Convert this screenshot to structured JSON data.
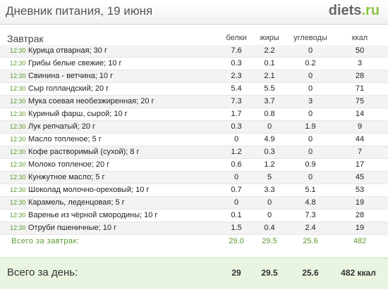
{
  "header": {
    "title": "Дневник питания, 19 июня",
    "logo_main": "diets",
    "logo_suffix": ".ru"
  },
  "table": {
    "meal_title": "Завтрак",
    "columns": [
      "белки",
      "жиры",
      "углеводы",
      "ккал"
    ],
    "rows": [
      {
        "time": "12:30",
        "food": "Курица отварная; 30 г",
        "protein": "7.6",
        "fat": "2.2",
        "carbs": "0",
        "kcal": "50"
      },
      {
        "time": "12:30",
        "food": "Грибы белые свежие; 10 г",
        "protein": "0.3",
        "fat": "0.1",
        "carbs": "0.2",
        "kcal": "3"
      },
      {
        "time": "12:30",
        "food": "Свинина - ветчина; 10 г",
        "protein": "2.3",
        "fat": "2.1",
        "carbs": "0",
        "kcal": "28"
      },
      {
        "time": "12:30",
        "food": "Сыр голландский; 20 г",
        "protein": "5.4",
        "fat": "5.5",
        "carbs": "0",
        "kcal": "71"
      },
      {
        "time": "12:30",
        "food": "Мука соевая необезжиренная; 20 г",
        "protein": "7.3",
        "fat": "3.7",
        "carbs": "3",
        "kcal": "75"
      },
      {
        "time": "12:30",
        "food": "Куриный фарш, сырой; 10 г",
        "protein": "1.7",
        "fat": "0.8",
        "carbs": "0",
        "kcal": "14"
      },
      {
        "time": "12:30",
        "food": "Лук репчатый; 20 г",
        "protein": "0.3",
        "fat": "0",
        "carbs": "1.9",
        "kcal": "9"
      },
      {
        "time": "12:30",
        "food": "Масло топленое; 5 г",
        "protein": "0",
        "fat": "4.9",
        "carbs": "0",
        "kcal": "44"
      },
      {
        "time": "12:30",
        "food": "Кофе растворимый (сухой); 8 г",
        "protein": "1.2",
        "fat": "0.3",
        "carbs": "0",
        "kcal": "7"
      },
      {
        "time": "12:30",
        "food": "Молоко топленое; 20 г",
        "protein": "0.6",
        "fat": "1.2",
        "carbs": "0.9",
        "kcal": "17"
      },
      {
        "time": "12:30",
        "food": "Кунжутное масло; 5 г",
        "protein": "0",
        "fat": "5",
        "carbs": "0",
        "kcal": "45"
      },
      {
        "time": "12:30",
        "food": "Шоколад молочно-ореховый; 10 г",
        "protein": "0.7",
        "fat": "3.3",
        "carbs": "5.1",
        "kcal": "53"
      },
      {
        "time": "12:30",
        "food": "Карамель, леденцовая; 5 г",
        "protein": "0",
        "fat": "0",
        "carbs": "4.8",
        "kcal": "19"
      },
      {
        "time": "12:30",
        "food": "Варенье из чёрной смородины; 10 г",
        "protein": "0.1",
        "fat": "0",
        "carbs": "7.3",
        "kcal": "28"
      },
      {
        "time": "12:30",
        "food": "Отруби пшеничные; 10 г",
        "protein": "1.5",
        "fat": "0.4",
        "carbs": "2.4",
        "kcal": "19"
      }
    ],
    "meal_total": {
      "label": "Всего за завтрак:",
      "protein": "29.0",
      "fat": "29.5",
      "carbs": "25.6",
      "kcal": "482"
    }
  },
  "day_total": {
    "label": "Всего за день:",
    "protein": "29",
    "fat": "29.5",
    "carbs": "25.6",
    "kcal": "482 ккал"
  },
  "colors": {
    "accent_green": "#5a9a2c",
    "logo_green": "#8ac43f",
    "day_total_bg": "#eaf5e1"
  }
}
